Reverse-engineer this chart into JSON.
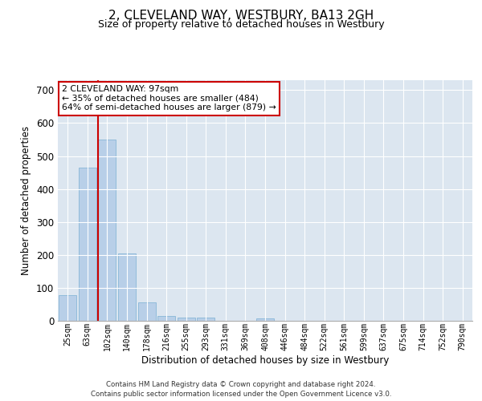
{
  "title": "2, CLEVELAND WAY, WESTBURY, BA13 2GH",
  "subtitle": "Size of property relative to detached houses in Westbury",
  "xlabel": "Distribution of detached houses by size in Westbury",
  "ylabel": "Number of detached properties",
  "bar_color": "#b8cfe8",
  "bar_edge_color": "#7aafd4",
  "background_color": "#dce6f0",
  "grid_color": "#ffffff",
  "categories": [
    "25sqm",
    "63sqm",
    "102sqm",
    "140sqm",
    "178sqm",
    "216sqm",
    "255sqm",
    "293sqm",
    "331sqm",
    "369sqm",
    "408sqm",
    "446sqm",
    "484sqm",
    "522sqm",
    "561sqm",
    "599sqm",
    "637sqm",
    "675sqm",
    "714sqm",
    "752sqm",
    "790sqm"
  ],
  "values": [
    78,
    465,
    550,
    204,
    57,
    15,
    10,
    9,
    0,
    0,
    8,
    0,
    0,
    0,
    0,
    0,
    0,
    0,
    0,
    0,
    0
  ],
  "ylim": [
    0,
    730
  ],
  "yticks": [
    0,
    100,
    200,
    300,
    400,
    500,
    600,
    700
  ],
  "red_line_color": "#cc0000",
  "red_line_bin": 2,
  "annotation_text": "2 CLEVELAND WAY: 97sqm\n← 35% of detached houses are smaller (484)\n64% of semi-detached houses are larger (879) →",
  "annotation_box_color": "#ffffff",
  "annotation_box_edgecolor": "#cc0000",
  "footer_line1": "Contains HM Land Registry data © Crown copyright and database right 2024.",
  "footer_line2": "Contains public sector information licensed under the Open Government Licence v3.0."
}
